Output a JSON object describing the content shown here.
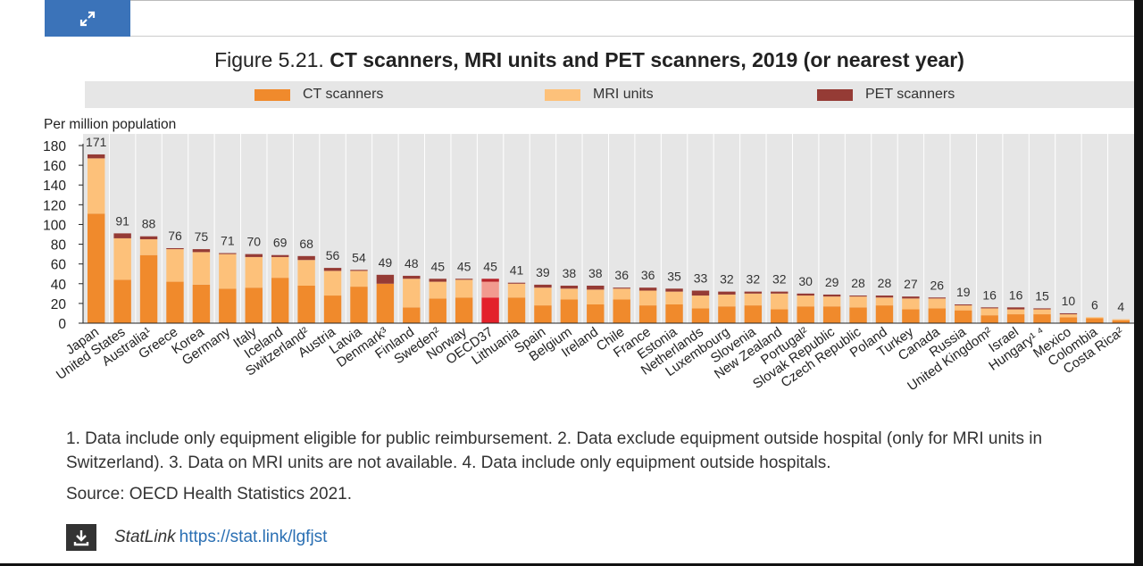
{
  "page": {
    "expand_icon": "expand-arrows-icon",
    "title_number": "Figure 5.21.",
    "title_text": "CT scanners, MRI units and PET scanners, 2019 (or nearest year)",
    "notes": "1. Data include only equipment eligible for public reimbursement. 2. Data exclude equipment outside hospital (only for MRI units in Switzerland). 3. Data on MRI units are not available. 4. Data include only equipment outside hospitals.",
    "source": "Source: OECD Health Statistics 2021.",
    "statlink_label": "StatLink",
    "statlink_url": "https://stat.link/lgfjst",
    "download_icon": "download-icon"
  },
  "colors": {
    "ct": "#f08a2c",
    "mri": "#fdc17a",
    "pet": "#953b35",
    "oecd_ct": "#e3212b",
    "oecd_mri": "#f29a8f",
    "oecd_pet": "#b8242b",
    "plot_bg": "#e6e6e6",
    "accent": "#3b73b9"
  },
  "chart_data": {
    "type": "bar",
    "stacked": true,
    "ylabel": "Per million population",
    "ylim": [
      0,
      180
    ],
    "yticks": [
      0,
      20,
      40,
      60,
      80,
      100,
      120,
      140,
      160,
      180
    ],
    "grid": false,
    "legend_position": "top",
    "categories": [
      "Japan",
      "United States",
      "Australia¹",
      "Greece",
      "Korea",
      "Germany",
      "Italy",
      "Iceland",
      "Switzerland²",
      "Austria",
      "Latvia",
      "Denmark³",
      "Finland",
      "Sweden²",
      "Norway",
      "OECD37",
      "Lithuania",
      "Spain",
      "Belgium",
      "Ireland",
      "Chile",
      "France",
      "Estonia",
      "Netherlands",
      "Luxembourg",
      "Slovenia",
      "New Zealand",
      "Portugal²",
      "Slovak Republic",
      "Czech Republic",
      "Poland",
      "Turkey",
      "Canada",
      "Russia",
      "United Kingdom²",
      "Israel",
      "Hungary¹ ⁴",
      "Mexico",
      "Colombia",
      "Costa Rica²"
    ],
    "totals": [
      "171",
      "91",
      "88",
      "76",
      "75",
      "71",
      "70",
      "69",
      "68",
      "56",
      "54",
      "49",
      "48",
      "45",
      "45",
      "45",
      "41",
      "39",
      "38",
      "38",
      "36",
      "36",
      "35",
      "33",
      "32",
      "32",
      "32",
      "30",
      "29",
      "28",
      "28",
      "27",
      "26",
      "19",
      "16",
      "16",
      "15",
      "10",
      "6",
      "4"
    ],
    "highlight_category": "OECD37",
    "series": [
      {
        "name": "CT scanners",
        "values": [
          111,
          44,
          69,
          42,
          39,
          35,
          36,
          46,
          38,
          28,
          37,
          40,
          16,
          25,
          26,
          26,
          26,
          18,
          24,
          19,
          24,
          18,
          19,
          15,
          17,
          18,
          14,
          17,
          17,
          16,
          18,
          14,
          15,
          13,
          8,
          9,
          9,
          6,
          5,
          3
        ]
      },
      {
        "name": "MRI units",
        "values": [
          56,
          42,
          16,
          33,
          33,
          35,
          31,
          21,
          26,
          25,
          16,
          0,
          29,
          17,
          18,
          16,
          14,
          18,
          11,
          15,
          11,
          15,
          13,
          13,
          12,
          12,
          16,
          11,
          10,
          11,
          8,
          11,
          10,
          5,
          7,
          5,
          5,
          3,
          1,
          1
        ]
      },
      {
        "name": "PET scanners",
        "values": [
          4,
          5,
          3,
          1,
          3,
          1,
          3,
          2,
          4,
          3,
          1,
          9,
          3,
          3,
          1,
          3,
          1,
          3,
          3,
          4,
          1,
          3,
          3,
          5,
          3,
          2,
          2,
          2,
          2,
          1,
          2,
          2,
          1,
          1,
          1,
          2,
          1,
          1,
          0,
          0
        ]
      }
    ]
  }
}
